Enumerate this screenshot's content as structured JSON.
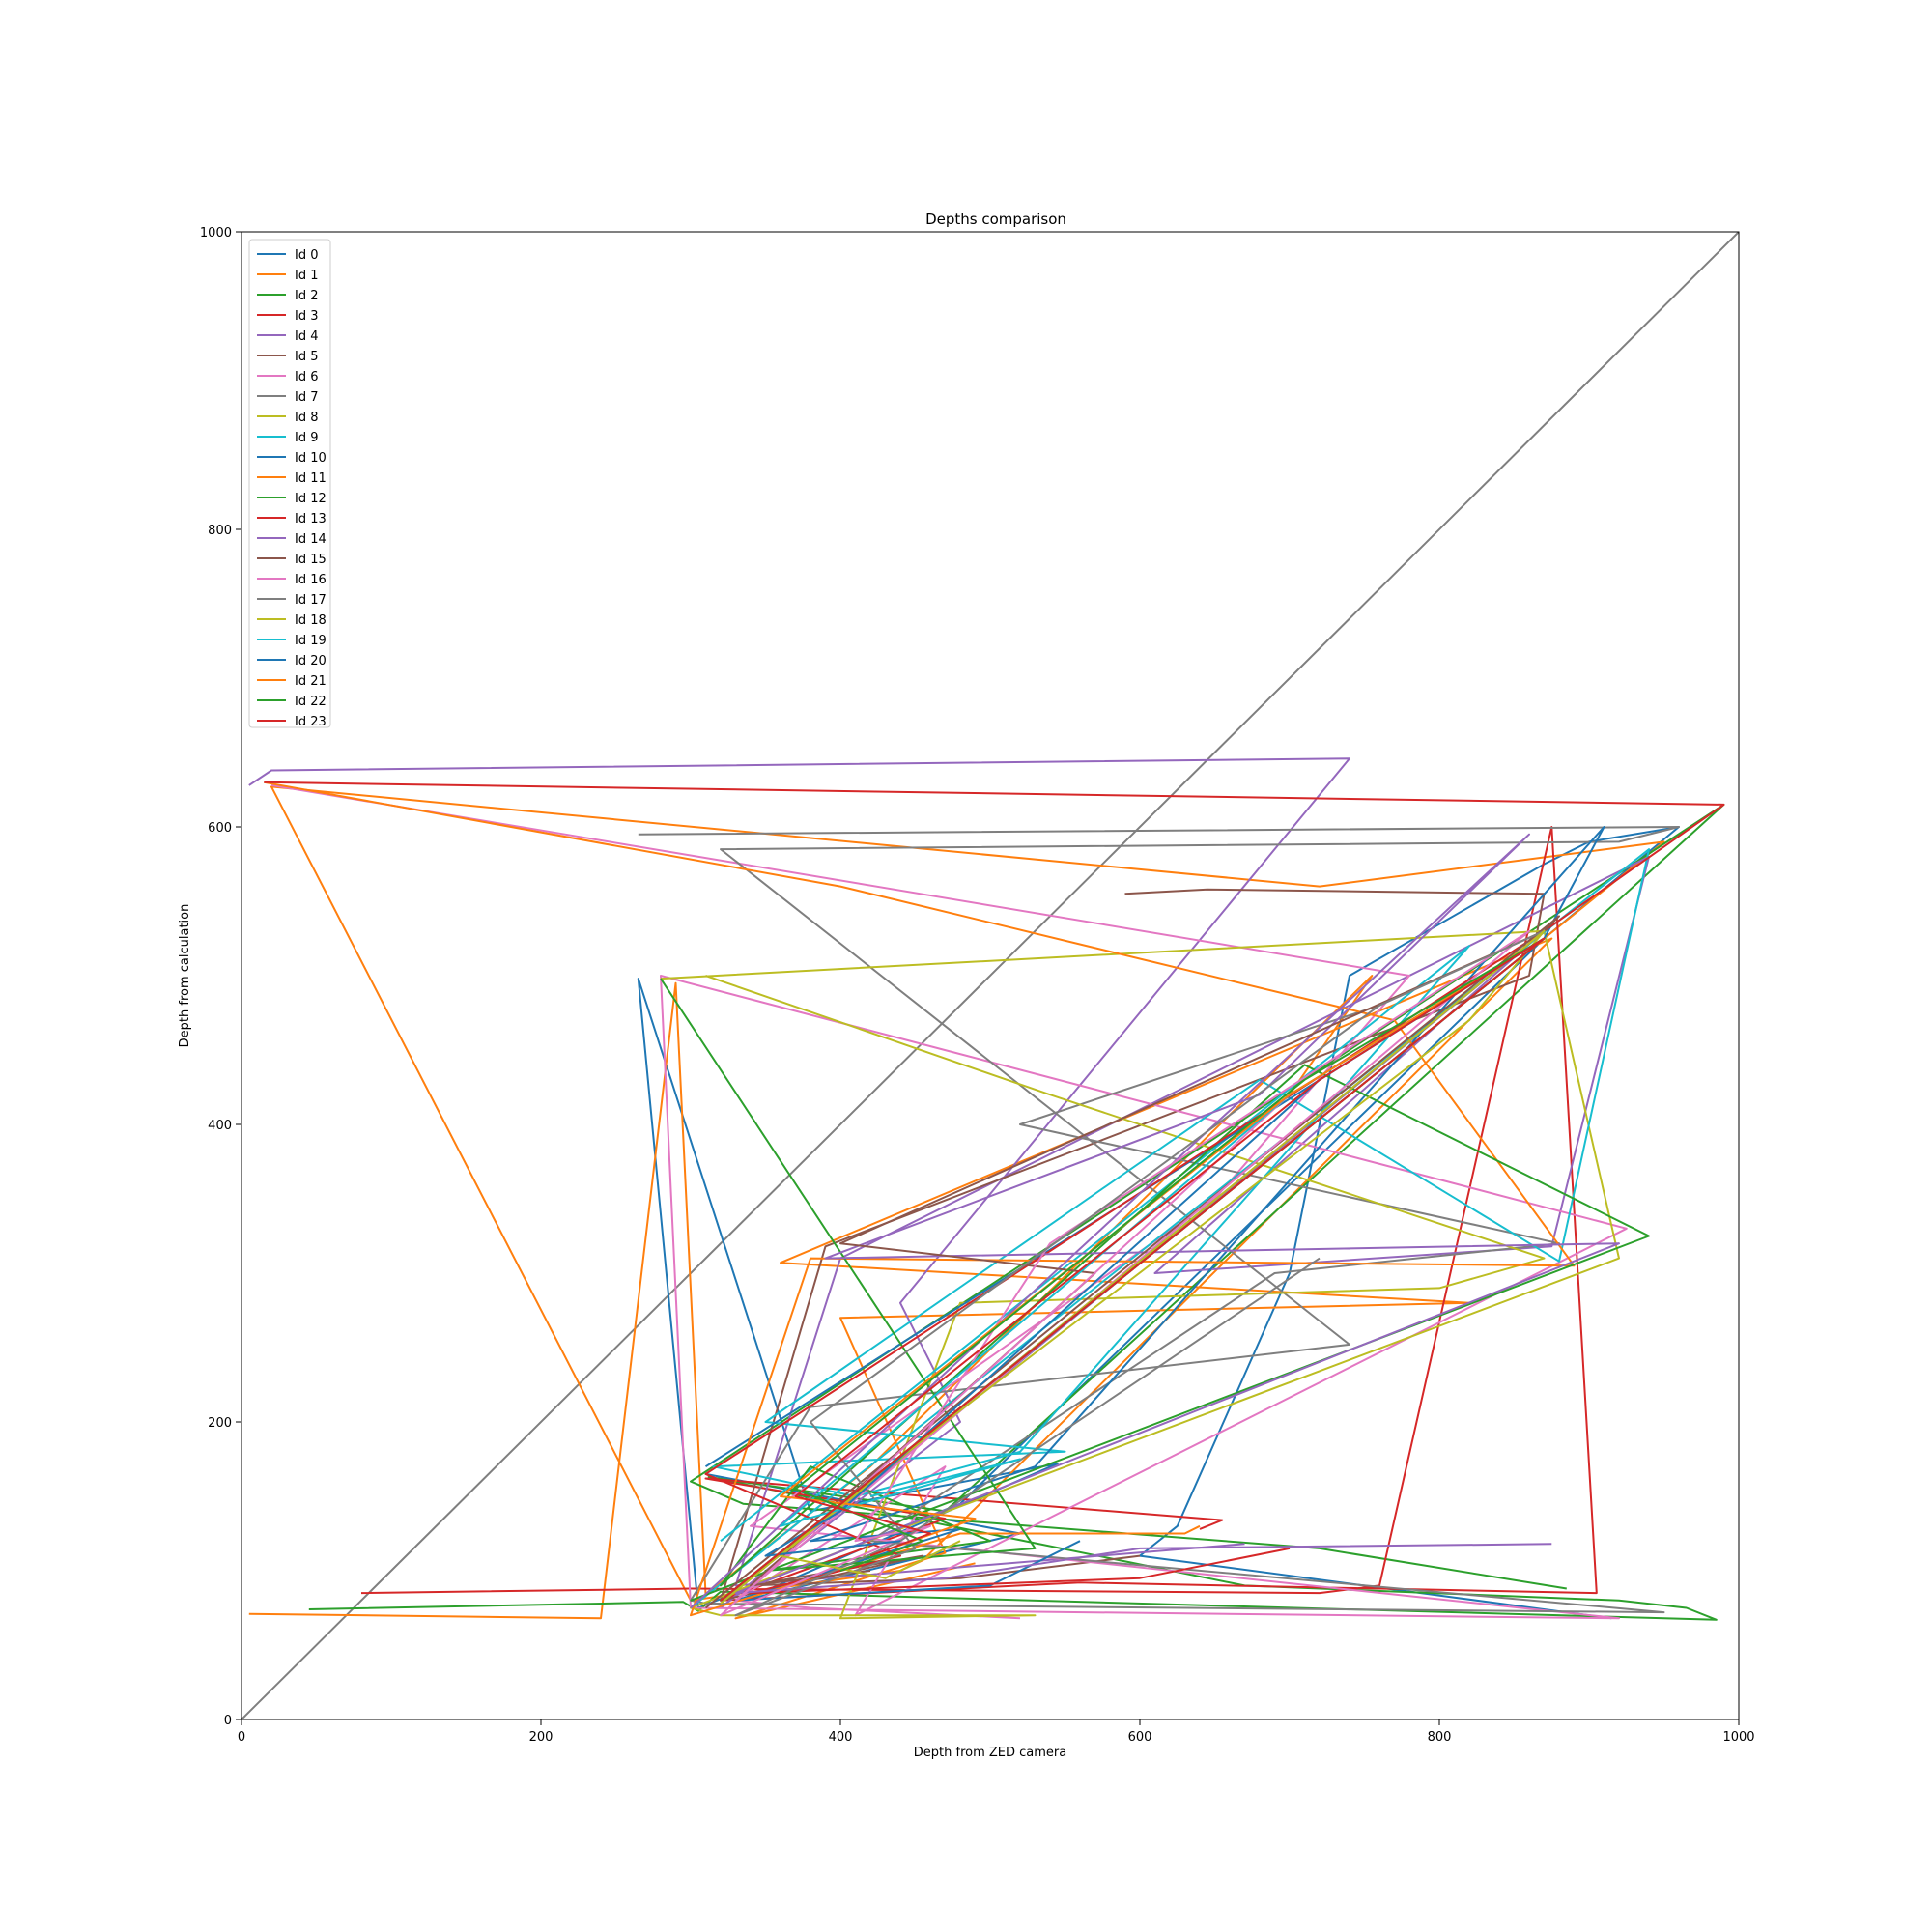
{
  "chart_data": {
    "type": "line",
    "title": "Depths comparison",
    "xlabel": "Depth from ZED camera",
    "ylabel": "Depth from calculation",
    "xlim": [
      0,
      1000
    ],
    "ylim": [
      0,
      1000
    ],
    "xticks": [
      "0",
      "200",
      "400",
      "600",
      "800",
      "1000"
    ],
    "yticks": [
      "0",
      "200",
      "400",
      "600",
      "800",
      "1000"
    ],
    "grid": false,
    "legend_position": "upper-left",
    "reference_line": {
      "x": [
        0,
        1000
      ],
      "y": [
        0,
        1000
      ],
      "color": "#7f7f7f"
    },
    "series": [
      {
        "name": "Id 0",
        "color": "#1f77b4",
        "x": [
          310,
          520,
          335,
          545,
          380,
          265,
          305,
          480,
          870,
          960,
          900,
          870,
          740,
          700,
          625,
          600,
          915
        ],
        "y": [
          165,
          125,
          80,
          172,
          140,
          498,
          75,
          145,
          525,
          600,
          590,
          575,
          500,
          300,
          130,
          110,
          68
        ]
      },
      {
        "name": "Id 1",
        "color": "#ff7f0e",
        "x": [
          5,
          240,
          290,
          310,
          420,
          755,
          700,
          870,
          950,
          720,
          20,
          300,
          440,
          455,
          875,
          360,
          820,
          400,
          470,
          330,
          490
        ],
        "y": [
          71,
          68,
          495,
          84,
          170,
          500,
          420,
          525,
          590,
          560,
          627,
          80,
          100,
          107,
          525,
          307,
          280,
          270,
          112,
          68,
          105
        ]
      },
      {
        "name": "Id 2",
        "color": "#2ca02c",
        "x": [
          45,
          295,
          305,
          320,
          985,
          965,
          920,
          670,
          312,
          470,
          990,
          300,
          335,
          720,
          885
        ],
        "y": [
          74,
          79,
          73,
          86,
          67,
          75,
          80,
          90,
          163,
          140,
          615,
          160,
          145,
          115,
          88
        ]
      },
      {
        "name": "Id 3",
        "color": "#d62728",
        "x": [
          80,
          300,
          720,
          760,
          875,
          905,
          560,
          320,
          470,
          310,
          655,
          640
        ],
        "y": [
          85,
          88,
          85,
          90,
          600,
          85,
          92,
          80,
          135,
          162,
          134,
          128
        ]
      },
      {
        "name": "Id 4",
        "color": "#9467bd",
        "x": [
          5,
          20,
          740,
          440,
          480,
          320,
          870,
          610,
          875,
          940,
          400,
          330,
          670
        ],
        "y": [
          628,
          638,
          646,
          280,
          200,
          75,
          530,
          300,
          318,
          580,
          310,
          90,
          118
        ]
      },
      {
        "name": "Id 5",
        "color": "#8c564b",
        "x": [
          590,
          645,
          870,
          860,
          390,
          320,
          455,
          340,
          480,
          600
        ],
        "y": [
          555,
          558,
          555,
          500,
          318,
          80,
          110,
          90,
          95,
          110
        ]
      },
      {
        "name": "Id 6",
        "color": "#e377c2",
        "x": [
          20,
          780,
          650,
          340,
          920,
          300,
          280,
          925,
          410,
          470,
          330,
          380,
          520
        ],
        "y": [
          628,
          500,
          350,
          130,
          68,
          75,
          500,
          330,
          70,
          170,
          80,
          75,
          68
        ]
      },
      {
        "name": "Id 7",
        "color": "#7f7f7f",
        "x": [
          265,
          960,
          920,
          320,
          740,
          380,
          300,
          310,
          950,
          420,
          690,
          880,
          520,
          760
        ],
        "y": [
          595,
          600,
          590,
          585,
          252,
          210,
          80,
          78,
          72,
          120,
          300,
          320,
          400,
          480
        ]
      },
      {
        "name": "Id 8",
        "color": "#bcbd22",
        "x": [
          280,
          870,
          920,
          300,
          320,
          530,
          400,
          480,
          800,
          870,
          540,
          310
        ],
        "y": [
          498,
          530,
          310,
          75,
          70,
          70,
          68,
          280,
          290,
          310,
          420,
          500
        ]
      },
      {
        "name": "Id 9",
        "color": "#17becf",
        "x": [
          300,
          940,
          880,
          680,
          350,
          550,
          315,
          410,
          520,
          820,
          320
        ],
        "y": [
          75,
          585,
          308,
          430,
          200,
          180,
          170,
          150,
          180,
          520,
          120
        ]
      },
      {
        "name": "Id 10",
        "color": "#1f77b4",
        "x": [
          310,
          870,
          910,
          530,
          380,
          480,
          330,
          500,
          560
        ],
        "y": [
          170,
          525,
          600,
          170,
          120,
          128,
          80,
          90,
          120
        ]
      },
      {
        "name": "Id 11",
        "color": "#ff7f0e",
        "x": [
          15,
          400,
          770,
          890,
          380,
          300,
          480,
          630,
          640
        ],
        "y": [
          630,
          560,
          470,
          305,
          310,
          70,
          125,
          125,
          130
        ]
      },
      {
        "name": "Id 12",
        "color": "#2ca02c",
        "x": [
          300,
          940,
          710,
          320,
          380,
          500,
          350,
          530,
          280
        ],
        "y": [
          80,
          325,
          440,
          90,
          170,
          120,
          100,
          115,
          498
        ]
      },
      {
        "name": "Id 13",
        "color": "#d62728",
        "x": [
          15,
          990,
          870,
          310,
          440,
          340,
          600,
          700
        ],
        "y": [
          630,
          615,
          530,
          165,
          110,
          85,
          95,
          115
        ]
      },
      {
        "name": "Id 14",
        "color": "#9467bd",
        "x": [
          300,
          860,
          680,
          390,
          920,
          330,
          470,
          600,
          875
        ],
        "y": [
          75,
          595,
          420,
          310,
          320,
          85,
          95,
          115,
          118
        ]
      },
      {
        "name": "Id 15",
        "color": "#8c564b",
        "x": [
          310,
          880,
          870,
          400,
          570,
          340,
          420
        ],
        "y": [
          75,
          540,
          530,
          320,
          300,
          90,
          100
        ]
      },
      {
        "name": "Id 16",
        "color": "#e377c2",
        "x": [
          330,
          860,
          540,
          410,
          460,
          320,
          700
        ],
        "y": [
          80,
          530,
          320,
          120,
          130,
          70,
          420
        ]
      },
      {
        "name": "Id 17",
        "color": "#7f7f7f",
        "x": [
          320,
          870,
          760,
          380,
          450,
          330,
          440,
          720
        ],
        "y": [
          78,
          530,
          480,
          200,
          115,
          70,
          120,
          310
        ]
      },
      {
        "name": "Id 18",
        "color": "#bcbd22",
        "x": [
          320,
          870,
          820,
          470,
          360,
          430,
          480
        ],
        "y": [
          78,
          530,
          470,
          200,
          110,
          95,
          120
        ]
      },
      {
        "name": "Id 19",
        "color": "#17becf",
        "x": [
          320,
          870,
          700,
          360,
          520,
          420
        ],
        "y": [
          80,
          525,
          420,
          130,
          175,
          150
        ]
      },
      {
        "name": "Id 20",
        "color": "#1f77b4",
        "x": [
          320,
          870,
          720,
          400,
          350,
          440
        ],
        "y": [
          80,
          525,
          430,
          140,
          110,
          120
        ]
      },
      {
        "name": "Id 21",
        "color": "#ff7f0e",
        "x": [
          320,
          870,
          700,
          360,
          490,
          420
        ],
        "y": [
          80,
          525,
          420,
          150,
          135,
          110
        ]
      },
      {
        "name": "Id 22",
        "color": "#2ca02c",
        "x": [
          320,
          870,
          710,
          370,
          455,
          400
        ],
        "y": [
          80,
          525,
          430,
          155,
          120,
          100
        ]
      },
      {
        "name": "Id 23",
        "color": "#d62728",
        "x": [
          320,
          870,
          720,
          370,
          460,
          420
        ],
        "y": [
          80,
          525,
          430,
          150,
          125,
          110
        ]
      }
    ]
  }
}
